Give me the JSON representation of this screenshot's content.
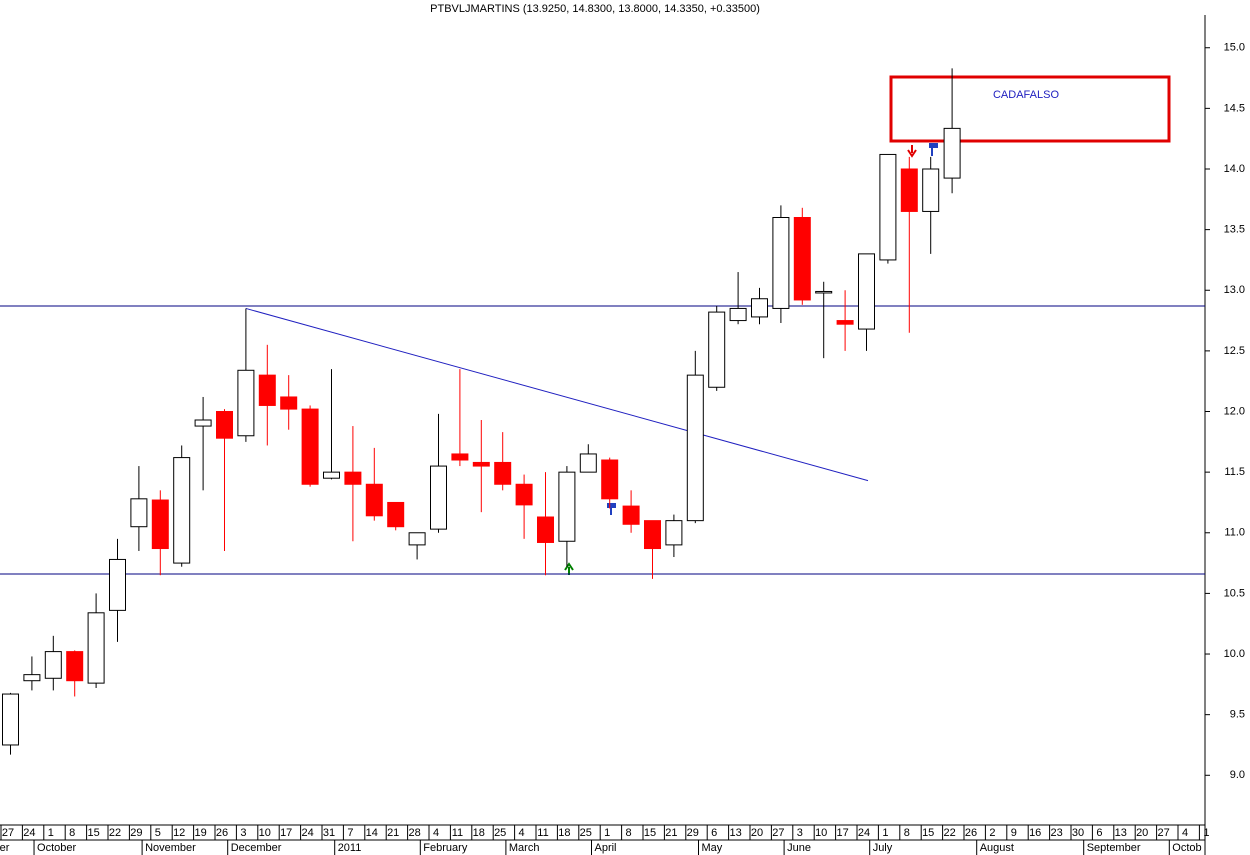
{
  "chart_data": {
    "type": "candlestick",
    "title": "PTBVLJMARTINS (13.9250, 14.8300, 13.8000, 14.3350, +0.33500)",
    "categories": [
      "27",
      "24",
      "1",
      "8",
      "15",
      "22",
      "29",
      "5",
      "12",
      "19",
      "26",
      "3",
      "10",
      "17",
      "24",
      "31",
      "7",
      "14",
      "21",
      "28",
      "4",
      "11",
      "18",
      "25",
      "4",
      "11",
      "18",
      "25",
      "1",
      "8",
      "15",
      "21",
      "29",
      "6",
      "13",
      "20",
      "27",
      "3",
      "10",
      "17",
      "24",
      "1",
      "8",
      "15",
      "22",
      "26",
      "2",
      "9",
      "16",
      "23",
      "30",
      "6",
      "13",
      "20",
      "27",
      "4",
      "1"
    ],
    "months": [
      "er",
      "October",
      "November",
      "December",
      "2011",
      "February",
      "March",
      "April",
      "May",
      "June",
      "July",
      "August",
      "September",
      "Octob"
    ],
    "open": [
      9.25,
      9.78,
      9.8,
      10.02,
      9.76,
      10.36,
      11.05,
      11.27,
      10.75,
      11.88,
      12.0,
      11.8,
      12.3,
      12.12,
      12.02,
      11.45,
      11.5,
      11.4,
      11.25,
      10.9,
      11.03,
      11.65,
      11.58,
      11.58,
      11.4,
      11.13,
      10.93,
      11.5,
      11.6,
      11.22,
      11.1,
      10.9,
      11.1,
      12.2,
      12.75,
      12.78,
      12.85,
      13.6,
      12.98,
      12.75,
      12.68,
      13.25,
      14.0,
      13.65,
      13.925,
      null,
      null,
      null,
      null,
      null,
      null,
      null,
      null,
      null,
      null,
      null,
      null
    ],
    "high": [
      9.68,
      9.98,
      10.15,
      10.03,
      10.5,
      10.95,
      11.55,
      11.35,
      11.72,
      12.12,
      12.02,
      12.85,
      12.55,
      12.3,
      12.05,
      12.35,
      11.88,
      11.7,
      11.25,
      11.0,
      11.98,
      12.35,
      11.93,
      11.83,
      11.48,
      11.5,
      11.55,
      11.73,
      11.62,
      11.35,
      11.1,
      11.15,
      12.5,
      12.87,
      13.15,
      13.02,
      13.7,
      13.68,
      13.07,
      13.0,
      13.3,
      14.12,
      14.1,
      14.1,
      14.83,
      null,
      null,
      null,
      null,
      null,
      null,
      null,
      null,
      null,
      null,
      null,
      null
    ],
    "low": [
      9.17,
      9.7,
      9.7,
      9.65,
      9.72,
      10.1,
      10.85,
      10.65,
      10.72,
      11.35,
      10.85,
      11.75,
      11.72,
      11.85,
      11.38,
      11.44,
      10.93,
      11.1,
      11.02,
      10.78,
      11.0,
      11.55,
      11.17,
      11.35,
      10.95,
      10.65,
      10.72,
      11.5,
      11.2,
      11.0,
      10.62,
      10.8,
      11.08,
      12.17,
      12.72,
      12.72,
      12.73,
      12.88,
      12.44,
      12.5,
      12.5,
      13.22,
      12.65,
      13.3,
      13.8,
      null,
      null,
      null,
      null,
      null,
      null,
      null,
      null,
      null,
      null,
      null,
      null
    ],
    "close": [
      9.67,
      9.83,
      10.02,
      9.78,
      10.34,
      10.78,
      11.28,
      10.87,
      11.62,
      11.93,
      11.78,
      12.34,
      12.05,
      12.02,
      11.4,
      11.5,
      11.4,
      11.14,
      11.05,
      11.0,
      11.55,
      11.6,
      11.55,
      11.4,
      11.23,
      10.92,
      11.5,
      11.65,
      11.28,
      11.07,
      10.87,
      11.1,
      12.3,
      12.82,
      12.85,
      12.93,
      13.6,
      12.92,
      12.99,
      12.72,
      13.3,
      14.12,
      13.65,
      14.0,
      14.335,
      null,
      null,
      null,
      null,
      null,
      null,
      null,
      null,
      null,
      null,
      null,
      null
    ],
    "up_color": "#ffffff",
    "down_color": "#ff0000",
    "ylim": [
      8.59,
      15.27
    ],
    "yticks": [
      {
        "value": 9,
        "label": "9.0"
      },
      9.5,
      {
        "value": 10,
        "label": "10.0"
      },
      10.5,
      {
        "value": 11,
        "label": "11.0"
      },
      11.5,
      {
        "value": 12,
        "label": "12.0"
      },
      12.5,
      {
        "value": 13,
        "label": "13.0"
      },
      13.5,
      {
        "value": 14,
        "label": "14.0"
      },
      14.5,
      {
        "value": 15,
        "label": "15.0"
      }
    ],
    "levels": [
      12.87,
      10.66
    ],
    "trendline": [
      12.85,
      11.43
    ],
    "annotation": "CADAFALSO"
  }
}
